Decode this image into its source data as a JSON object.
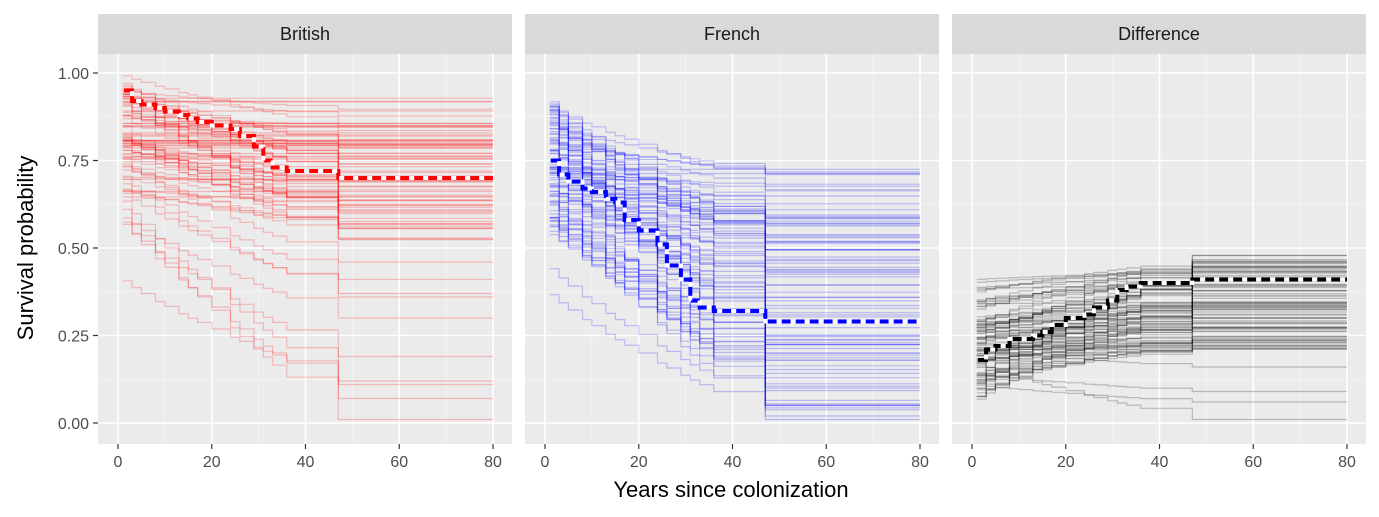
{
  "chart_data": {
    "type": "line",
    "xlabel": "Years since colonization",
    "ylabel": "Survival probability",
    "xlim": [
      0,
      80
    ],
    "ylim": [
      0,
      1
    ],
    "x_ticks": [
      "0",
      "20",
      "40",
      "60",
      "80"
    ],
    "y_ticks": [
      "0.00",
      "0.25",
      "0.50",
      "0.75",
      "1.00"
    ],
    "grid": true,
    "legend": "none",
    "step_times": [
      1,
      3,
      5,
      8,
      10,
      13,
      15,
      17,
      20,
      24,
      26,
      29,
      31,
      33,
      36,
      47,
      80
    ],
    "panels": [
      {
        "name": "British",
        "color": "#ff0000",
        "summary_series": {
          "x": [
            1,
            3,
            5,
            8,
            10,
            13,
            15,
            17,
            20,
            24,
            26,
            29,
            31,
            33,
            36,
            47,
            80
          ],
          "y": [
            0.95,
            0.92,
            0.91,
            0.9,
            0.89,
            0.88,
            0.87,
            0.86,
            0.85,
            0.84,
            0.82,
            0.79,
            0.75,
            0.73,
            0.72,
            0.7,
            0.7
          ]
        },
        "draws": {
          "count": 90,
          "y_at_0": [
            0.62,
            1.0
          ],
          "y_at_80": [
            0.52,
            0.93
          ],
          "outliers_y_at_80": [
            0.46,
            0.41,
            0.37,
            0.36,
            0.3,
            0.19,
            0.12,
            0.11,
            0.07,
            0.01
          ]
        }
      },
      {
        "name": "French",
        "color": "#0000ff",
        "summary_series": {
          "x": [
            1,
            3,
            5,
            8,
            10,
            13,
            15,
            17,
            20,
            24,
            26,
            29,
            31,
            33,
            36,
            47,
            80
          ],
          "y": [
            0.75,
            0.71,
            0.69,
            0.67,
            0.66,
            0.64,
            0.63,
            0.58,
            0.55,
            0.51,
            0.45,
            0.41,
            0.35,
            0.33,
            0.32,
            0.29,
            0.29
          ]
        },
        "draws": {
          "count": 90,
          "y_at_0": [
            0.55,
            0.94
          ],
          "y_at_80": [
            0.02,
            0.73
          ],
          "outliers_y_at_80": [
            0.1,
            0.05,
            0.02,
            0.01
          ]
        }
      },
      {
        "name": "Difference",
        "color": "#000000",
        "summary_series": {
          "x": [
            1,
            3,
            5,
            8,
            10,
            13,
            15,
            17,
            20,
            24,
            26,
            29,
            31,
            33,
            36,
            47,
            80
          ],
          "y": [
            0.18,
            0.21,
            0.22,
            0.24,
            0.24,
            0.25,
            0.26,
            0.28,
            0.3,
            0.31,
            0.33,
            0.35,
            0.38,
            0.39,
            0.4,
            0.41,
            0.41
          ]
        },
        "draws": {
          "count": 90,
          "y_at_0": [
            0.05,
            0.49
          ],
          "y_at_80": [
            0.21,
            0.49
          ],
          "outliers_y_at_80": [
            0.16,
            0.09,
            0.06,
            0.01
          ]
        }
      }
    ]
  }
}
